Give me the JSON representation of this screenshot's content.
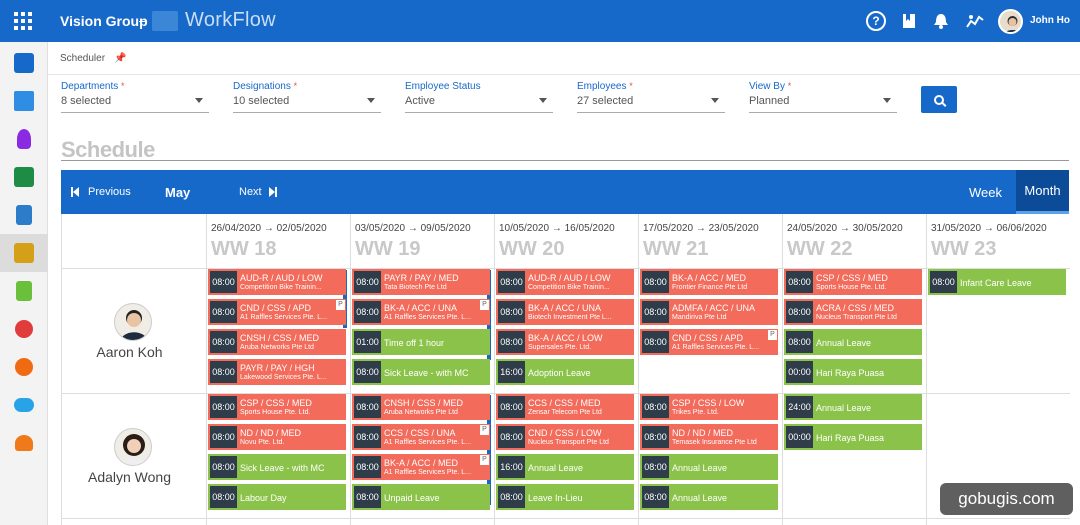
{
  "header": {
    "brand": "Vision Group",
    "separator": "–",
    "app_name": "WorkFlow",
    "user_name": "John Ho",
    "help": "?"
  },
  "subheader": {
    "title": "Scheduler"
  },
  "filters": [
    {
      "label": "Departments",
      "required": "*",
      "value": "8 selected"
    },
    {
      "label": "Designations",
      "required": "*",
      "value": "10 selected"
    },
    {
      "label": "Employee Status",
      "required": "",
      "value": "Active"
    },
    {
      "label": "Employees",
      "required": "*",
      "value": "27 selected"
    },
    {
      "label": "View By",
      "required": "*",
      "value": "Planned"
    }
  ],
  "schedule_title": "Schedule",
  "nav": {
    "prev": "Previous",
    "month": "May",
    "next": "Next",
    "week_tab": "Week",
    "month_tab": "Month"
  },
  "weeks": [
    {
      "dates": "26/04/2020 → 02/05/2020",
      "ww": "WW 18"
    },
    {
      "dates": "03/05/2020 → 09/05/2020",
      "ww": "WW 19"
    },
    {
      "dates": "10/05/2020 → 16/05/2020",
      "ww": "WW 20"
    },
    {
      "dates": "17/05/2020 → 23/05/2020",
      "ww": "WW 21"
    },
    {
      "dates": "24/05/2020 → 30/05/2020",
      "ww": "WW 22"
    },
    {
      "dates": "31/05/2020 → 06/06/2020",
      "ww": "WW 23"
    }
  ],
  "employees": [
    {
      "name": "Aaron Koh"
    },
    {
      "name": "Adalyn Wong"
    }
  ],
  "events": {
    "r1": [
      [
        {
          "t": "08:00",
          "title": "AUD-R / AUD / LOW",
          "sub": "Competition Bike Trainin...",
          "c": "red"
        },
        {
          "t": "08:00",
          "title": "CND / CSS / APD",
          "sub": "A1 Raffles Services Pte. L...",
          "c": "red",
          "flag": "P"
        },
        {
          "t": "08:00",
          "title": "CNSH / CSS / MED",
          "sub": "Aruba Networks Pte Ltd",
          "c": "red"
        },
        {
          "t": "08:00",
          "title": "PAYR / PAY / HGH",
          "sub": "Lakewood Services Pte. L...",
          "c": "red"
        }
      ],
      [
        {
          "t": "08:00",
          "title": "PAYR / PAY / MED",
          "sub": "Tata Biotech Pte Ltd",
          "c": "red"
        },
        {
          "t": "08:00",
          "title": "BK-A / ACC / UNA",
          "sub": "A1 Raffles Services Pte. L...",
          "c": "red",
          "flag": "P"
        },
        {
          "t": "01:00",
          "title": "Time off 1 hour",
          "c": "green"
        },
        {
          "t": "08:00",
          "title": "Sick Leave - with MC",
          "c": "green"
        }
      ],
      [
        {
          "t": "08:00",
          "title": "AUD-R / AUD / LOW",
          "sub": "Competition Bike Trainin...",
          "c": "red"
        },
        {
          "t": "08:00",
          "title": "BK-A / ACC / UNA",
          "sub": "Biotech Investment Pte L...",
          "c": "red"
        },
        {
          "t": "08:00",
          "title": "BK-A / ACC / LOW",
          "sub": "Supersales Pte. Ltd.",
          "c": "red"
        },
        {
          "t": "16:00",
          "title": "Adoption Leave",
          "c": "green"
        }
      ],
      [
        {
          "t": "08:00",
          "title": "BK-A / ACC / MED",
          "sub": "Frontier Finance Pte Ltd",
          "c": "red"
        },
        {
          "t": "08:00",
          "title": "ADMFA / ACC / UNA",
          "sub": "Mandiriva Pte Ltd",
          "c": "red"
        },
        {
          "t": "08:00",
          "title": "CND / CSS / APD",
          "sub": "A1 Raffles Services Pte. L...",
          "c": "red",
          "flag": "P"
        }
      ],
      [
        {
          "t": "08:00",
          "title": "CSP / CSS / MED",
          "sub": "Sports House Pte. Ltd.",
          "c": "red"
        },
        {
          "t": "08:00",
          "title": "ACRA / CSS / MED",
          "sub": "Nucleus Transport Pte Ltd",
          "c": "red"
        },
        {
          "t": "08:00",
          "title": "Annual Leave",
          "c": "green"
        },
        {
          "t": "00:00",
          "title": "Hari Raya Puasa",
          "c": "green"
        }
      ],
      [
        {
          "t": "08:00",
          "title": "Infant Care Leave",
          "c": "green"
        }
      ]
    ],
    "r2": [
      [
        {
          "t": "08:00",
          "title": "CSP / CSS / MED",
          "sub": "Sports House Pte. Ltd.",
          "c": "red"
        },
        {
          "t": "08:00",
          "title": "ND / ND / MED",
          "sub": "Novu Pte. Ltd.",
          "c": "red"
        },
        {
          "t": "08:00",
          "title": "Sick Leave - with MC",
          "c": "green"
        },
        {
          "t": "08:00",
          "title": "Labour Day",
          "c": "green"
        }
      ],
      [
        {
          "t": "08:00",
          "title": "CNSH / CSS / MED",
          "sub": "Aruba Networks Pte Ltd",
          "c": "red"
        },
        {
          "t": "08:00",
          "title": "CCS / CSS / UNA",
          "sub": "A1 Raffles Services Pte. L...",
          "c": "red",
          "flag": "P"
        },
        {
          "t": "08:00",
          "title": "BK-A / ACC / MED",
          "sub": "A1 Raffles Services Pte. L...",
          "c": "red",
          "flag": "P"
        },
        {
          "t": "08:00",
          "title": "Unpaid Leave",
          "c": "green"
        }
      ],
      [
        {
          "t": "08:00",
          "title": "CCS / CSS / MED",
          "sub": "Zensar Telecom Pte Ltd",
          "c": "red"
        },
        {
          "t": "08:00",
          "title": "CND / CSS / LOW",
          "sub": "Nucleus Transport Pte Ltd",
          "c": "red"
        },
        {
          "t": "16:00",
          "title": "Annual Leave",
          "c": "green"
        },
        {
          "t": "08:00",
          "title": "Leave In-Lieu",
          "c": "green"
        }
      ],
      [
        {
          "t": "08:00",
          "title": "CSP / CSS / LOW",
          "sub": "Trikes Pte. Ltd.",
          "c": "red"
        },
        {
          "t": "08:00",
          "title": "ND / ND / MED",
          "sub": "Temasek Insurance Pte Ltd",
          "c": "red"
        },
        {
          "t": "08:00",
          "title": "Annual Leave",
          "c": "green"
        },
        {
          "t": "08:00",
          "title": "Annual Leave",
          "c": "green"
        }
      ],
      [
        {
          "t": "24:00",
          "title": "Annual Leave",
          "c": "green"
        },
        {
          "t": "00:00",
          "title": "Hari Raya Puasa",
          "c": "green"
        }
      ],
      []
    ]
  },
  "watermark": "gobugis.com",
  "colors": {
    "primary": "#1769c9",
    "event_red": "#f26b5b",
    "event_green": "#8bc34a",
    "time_badge": "#2e3d49"
  }
}
